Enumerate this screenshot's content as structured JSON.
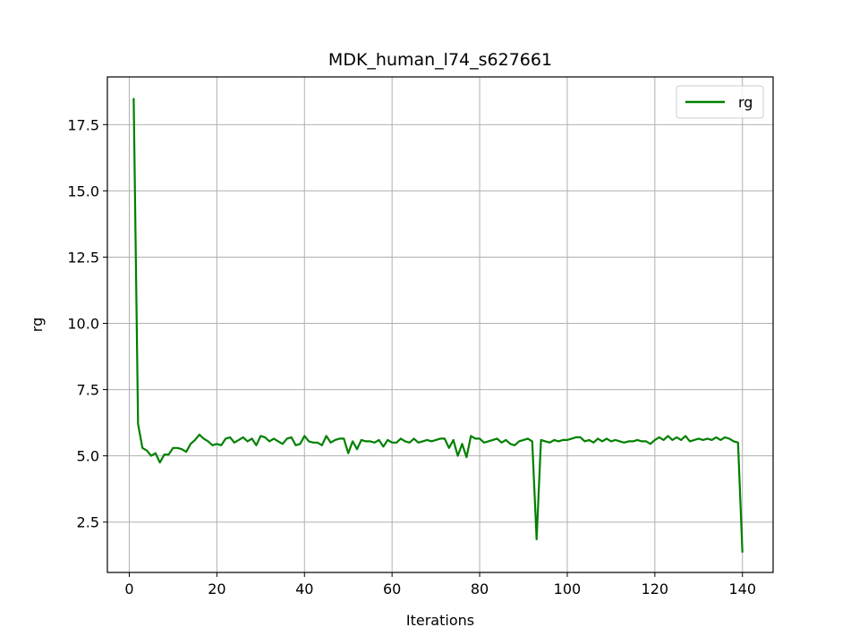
{
  "chart_data": {
    "type": "line",
    "title": "MDK_human_l74_s627661",
    "xlabel": "Iterations",
    "ylabel": "rg",
    "xlim": [
      -5,
      147
    ],
    "ylim": [
      0.6,
      19.3
    ],
    "xticks": [
      0,
      20,
      40,
      60,
      80,
      100,
      120,
      140
    ],
    "yticks": [
      2.5,
      5.0,
      7.5,
      10.0,
      12.5,
      15.0,
      17.5
    ],
    "grid": true,
    "legend_position": "top-right",
    "series": [
      {
        "name": "rg",
        "color": "#008000",
        "x": [
          1,
          2,
          3,
          4,
          5,
          6,
          7,
          8,
          9,
          10,
          11,
          12,
          13,
          14,
          15,
          16,
          17,
          18,
          19,
          20,
          21,
          22,
          23,
          24,
          25,
          26,
          27,
          28,
          29,
          30,
          31,
          32,
          33,
          34,
          35,
          36,
          37,
          38,
          39,
          40,
          41,
          42,
          43,
          44,
          45,
          46,
          47,
          48,
          49,
          50,
          51,
          52,
          53,
          54,
          55,
          56,
          57,
          58,
          59,
          60,
          61,
          62,
          63,
          64,
          65,
          66,
          67,
          68,
          69,
          70,
          71,
          72,
          73,
          74,
          75,
          76,
          77,
          78,
          79,
          80,
          81,
          82,
          83,
          84,
          85,
          86,
          87,
          88,
          89,
          90,
          91,
          92,
          93,
          94,
          95,
          96,
          97,
          98,
          99,
          100,
          101,
          102,
          103,
          104,
          105,
          106,
          107,
          108,
          109,
          110,
          111,
          112,
          113,
          114,
          115,
          116,
          117,
          118,
          119,
          120,
          121,
          122,
          123,
          124,
          125,
          126,
          127,
          128,
          129,
          130,
          131,
          132,
          133,
          134,
          135,
          136,
          137,
          138,
          139,
          140
        ],
        "y": [
          18.5,
          6.2,
          5.3,
          5.2,
          5.0,
          5.1,
          4.75,
          5.05,
          5.05,
          5.3,
          5.3,
          5.25,
          5.15,
          5.45,
          5.6,
          5.8,
          5.65,
          5.55,
          5.4,
          5.45,
          5.4,
          5.65,
          5.7,
          5.5,
          5.6,
          5.7,
          5.55,
          5.65,
          5.4,
          5.75,
          5.7,
          5.55,
          5.65,
          5.55,
          5.45,
          5.65,
          5.7,
          5.4,
          5.45,
          5.75,
          5.55,
          5.5,
          5.5,
          5.4,
          5.75,
          5.5,
          5.6,
          5.65,
          5.65,
          5.1,
          5.55,
          5.25,
          5.6,
          5.55,
          5.55,
          5.5,
          5.6,
          5.35,
          5.6,
          5.5,
          5.5,
          5.65,
          5.55,
          5.5,
          5.65,
          5.5,
          5.55,
          5.6,
          5.55,
          5.6,
          5.65,
          5.65,
          5.3,
          5.6,
          5.0,
          5.45,
          4.95,
          5.75,
          5.65,
          5.65,
          5.5,
          5.55,
          5.6,
          5.65,
          5.5,
          5.6,
          5.45,
          5.4,
          5.55,
          5.6,
          5.65,
          5.55,
          1.85,
          5.6,
          5.55,
          5.5,
          5.6,
          5.55,
          5.6,
          5.6,
          5.65,
          5.7,
          5.7,
          5.55,
          5.6,
          5.5,
          5.65,
          5.55,
          5.65,
          5.55,
          5.6,
          5.55,
          5.5,
          5.55,
          5.55,
          5.6,
          5.55,
          5.55,
          5.45,
          5.6,
          5.7,
          5.6,
          5.75,
          5.6,
          5.7,
          5.6,
          5.75,
          5.55,
          5.6,
          5.65,
          5.6,
          5.65,
          5.6,
          5.7,
          5.6,
          5.7,
          5.65,
          5.55,
          5.5,
          1.35
        ]
      }
    ]
  }
}
